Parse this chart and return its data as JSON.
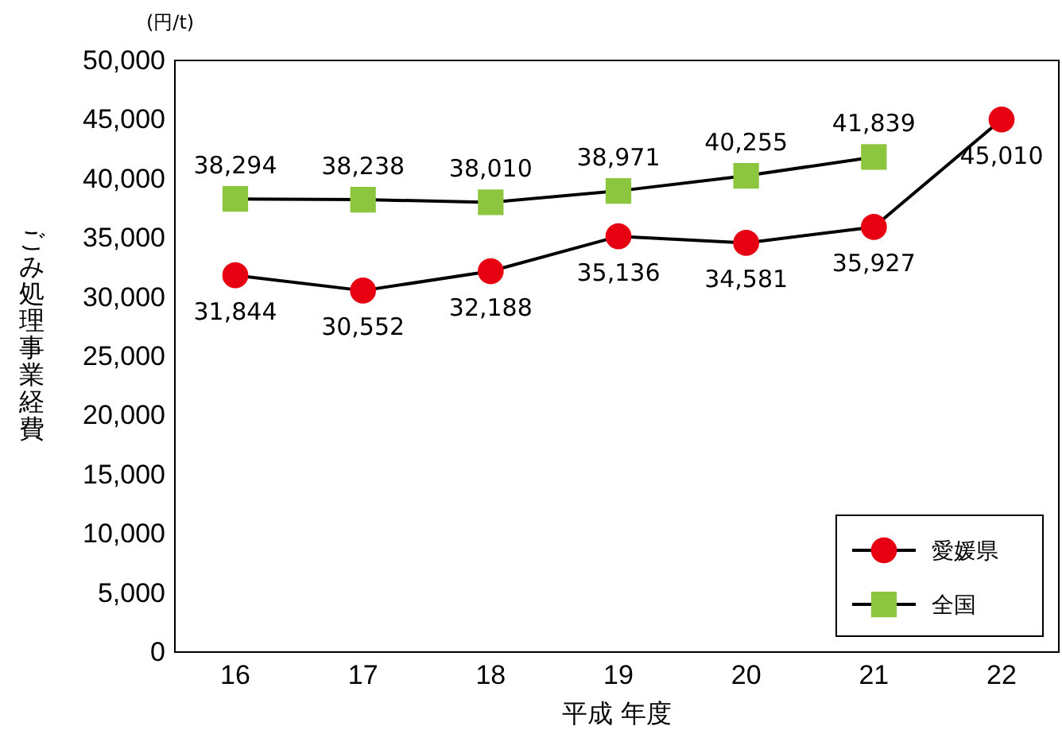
{
  "chart_data": {
    "type": "line",
    "ylabel": "ごみ処理事業経費",
    "xlabel": "平成 年度",
    "annotations": [
      "(円/t)"
    ],
    "categories": [
      "16",
      "17",
      "18",
      "19",
      "20",
      "21",
      "22"
    ],
    "series": [
      {
        "name": "愛媛県",
        "color": "#e60012",
        "marker": "circle",
        "values": [
          31844,
          30552,
          32188,
          35136,
          34581,
          35927,
          45010
        ],
        "value_labels": [
          "31,844",
          "30,552",
          "32,188",
          "35,136",
          "34,581",
          "35,927",
          "45,010"
        ]
      },
      {
        "name": "全国",
        "color": "#8cc63f",
        "marker": "square",
        "values": [
          38294,
          38238,
          38010,
          38971,
          40255,
          41839,
          null
        ],
        "value_labels": [
          "38,294",
          "38,238",
          "38,010",
          "38,971",
          "40,255",
          "41,839",
          null
        ]
      }
    ],
    "ylim": [
      0,
      50000
    ],
    "yticks": [
      0,
      {
        "value": 5000,
        "label": "5,000"
      },
      {
        "value": 10000,
        "label": "10,000"
      },
      {
        "value": 15000,
        "label": "15,000"
      },
      {
        "value": 20000,
        "label": "20,000"
      },
      {
        "value": 25000,
        "label": "25,000"
      },
      {
        "value": 30000,
        "label": "30,000"
      },
      {
        "value": 35000,
        "label": "35,000"
      },
      {
        "value": 40000,
        "label": "40,000"
      },
      {
        "value": 45000,
        "label": "45,000"
      },
      {
        "value": 50000,
        "label": "50,000"
      }
    ],
    "legend": "bottom right",
    "grid": false,
    "line_style": "solid"
  }
}
